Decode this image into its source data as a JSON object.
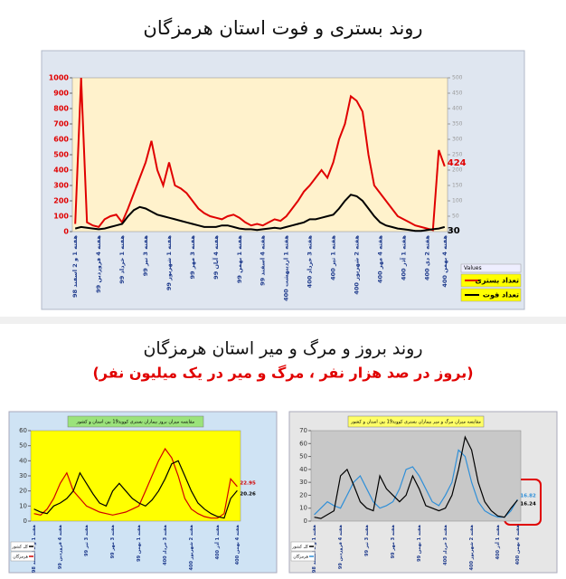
{
  "section_title": "روند بروز و مرگ و میر استان هرمزگان",
  "section_subtitle": "(بروز در صد هزار نفر ، مرگ و میر در یک میلیون نفر)",
  "chart_data": [
    {
      "type": "line",
      "title": "روند بستری و فوت استان هرمزگان",
      "legend_title": "Values",
      "categories": [
        "هفته 1 و 2 اسفند 98",
        null,
        null,
        null,
        "هفته 4 فروردین 99",
        null,
        null,
        null,
        "هفته 1 خرداد 99",
        null,
        null,
        null,
        "هفته 3 تیر 99",
        null,
        null,
        null,
        "هفته 1 شهریور 99",
        null,
        null,
        null,
        "هفته 3 مهر 99",
        null,
        null,
        null,
        "هفته 4 آبان 99",
        null,
        null,
        null,
        "هفته 1 بهمن 99",
        null,
        null,
        null,
        "هفته 4 اسفند 99",
        null,
        null,
        null,
        "هفته 1 اردیبهشت 400",
        null,
        null,
        null,
        "هفته 3 خرداد 400",
        null,
        null,
        null,
        "هفته 1 تیر 400",
        null,
        null,
        null,
        "هفته 2 شهریور 400",
        null,
        null,
        null,
        "هفته 4 مهر 400",
        null,
        null,
        null,
        "هفته 1 آذر 400",
        null,
        null,
        null,
        "هفته 2 دی 400",
        null,
        null,
        "هفته 4 بهمن 400"
      ],
      "series": [
        {
          "name": "تعداد بستری",
          "color": "#e00000",
          "values": [
            50,
            1000,
            60,
            40,
            30,
            80,
            100,
            110,
            60,
            150,
            250,
            350,
            450,
            590,
            400,
            300,
            450,
            300,
            280,
            250,
            200,
            150,
            120,
            100,
            90,
            80,
            100,
            110,
            90,
            60,
            40,
            50,
            40,
            60,
            80,
            70,
            100,
            150,
            200,
            260,
            300,
            350,
            400,
            350,
            450,
            600,
            700,
            880,
            850,
            780,
            500,
            300,
            250,
            200,
            150,
            100,
            80,
            60,
            40,
            30,
            20,
            10,
            530,
            424
          ]
        },
        {
          "name": "تعداد فوت",
          "color": "#000000",
          "values": [
            20,
            30,
            25,
            20,
            15,
            20,
            30,
            40,
            50,
            100,
            140,
            160,
            150,
            130,
            110,
            100,
            90,
            80,
            70,
            60,
            50,
            40,
            30,
            30,
            30,
            40,
            40,
            30,
            20,
            15,
            15,
            10,
            15,
            20,
            25,
            20,
            30,
            40,
            50,
            60,
            80,
            80,
            90,
            100,
            110,
            150,
            200,
            240,
            230,
            200,
            150,
            100,
            60,
            40,
            30,
            20,
            15,
            10,
            5,
            5,
            10,
            15,
            20,
            30
          ]
        }
      ],
      "ylim": [
        0,
        1000
      ],
      "yticks": [
        0,
        100,
        200,
        300,
        400,
        500,
        600,
        700,
        800,
        900,
        1000
      ],
      "y2lim": [
        0,
        500
      ],
      "y2ticks": [
        0,
        50,
        100,
        150,
        200,
        250,
        300,
        350,
        400,
        450,
        500
      ],
      "background": "#fff2cc"
    },
    {
      "type": "line",
      "title": "مقایسه میزان بروز بیماران بستری کووید19 بین استان و کشور",
      "categories": [
        "هفته 1 و 2 اسفند 98",
        null,
        null,
        null,
        "هفته 4 فروردین 99",
        null,
        null,
        null,
        "هفته 3 تیر 99",
        null,
        null,
        null,
        "هفته 3 مهر 99",
        null,
        null,
        null,
        "هفته 1 بهمن 99",
        null,
        null,
        null,
        "هفته 3 خرداد 400",
        null,
        null,
        null,
        "هفته 2 شهریور 400",
        null,
        null,
        null,
        "هفته 1 آذر 400",
        null,
        null,
        "هفته 4 بهمن 400"
      ],
      "series": [
        {
          "name": "هرمزگان",
          "color": "#d00000",
          "values": [
            5,
            4,
            8,
            15,
            25,
            32,
            20,
            15,
            10,
            8,
            6,
            5,
            4,
            5,
            6,
            8,
            10,
            20,
            30,
            40,
            48,
            42,
            30,
            15,
            8,
            5,
            3,
            2,
            2,
            5,
            28,
            22.95
          ]
        },
        {
          "name": "کل کشور",
          "color": "#000000",
          "values": [
            8,
            6,
            5,
            10,
            12,
            15,
            20,
            32,
            25,
            18,
            12,
            10,
            20,
            25,
            20,
            15,
            12,
            10,
            14,
            20,
            28,
            38,
            40,
            30,
            20,
            12,
            8,
            5,
            3,
            2,
            15,
            20.26
          ]
        }
      ],
      "ylim": [
        0,
        60
      ],
      "yticks": [
        0,
        10,
        20,
        30,
        40,
        50,
        60
      ],
      "background": "#ffff00"
    },
    {
      "type": "line",
      "title": "مقایسه میزان مرگ و میر بیماران بستری کووید19 بین استان و کشور",
      "categories": [
        "هفته 1 و 2 اسفند 98",
        null,
        null,
        null,
        "هفته 4 فروردین 99",
        null,
        null,
        null,
        "هفته 3 تیر 99",
        null,
        null,
        null,
        "هفته 3 مهر 99",
        null,
        null,
        null,
        "هفته 1 بهمن 99",
        null,
        null,
        null,
        "هفته 3 خرداد 400",
        null,
        null,
        null,
        "هفته 2 شهریور 400",
        null,
        null,
        null,
        "هفته 1 آذر 400",
        null,
        null,
        "هفته 4 بهمن 400"
      ],
      "series": [
        {
          "name": "هرمزگان",
          "color": "#2f8fd8",
          "values": [
            5,
            10,
            15,
            12,
            10,
            20,
            30,
            35,
            25,
            15,
            10,
            12,
            15,
            25,
            40,
            42,
            35,
            25,
            15,
            12,
            20,
            30,
            55,
            50,
            30,
            15,
            8,
            5,
            3,
            3,
            8,
            16.82
          ]
        },
        {
          "name": "کل کشور",
          "color": "#000000",
          "values": [
            3,
            2,
            5,
            8,
            35,
            40,
            28,
            15,
            10,
            8,
            35,
            25,
            20,
            15,
            20,
            35,
            25,
            12,
            10,
            8,
            10,
            20,
            40,
            65,
            55,
            30,
            15,
            8,
            4,
            3,
            10,
            16.24
          ]
        }
      ],
      "ylim": [
        0,
        70
      ],
      "yticks": [
        0,
        10,
        20,
        30,
        40,
        50,
        60,
        70
      ],
      "background": "#c8c8c8"
    }
  ]
}
